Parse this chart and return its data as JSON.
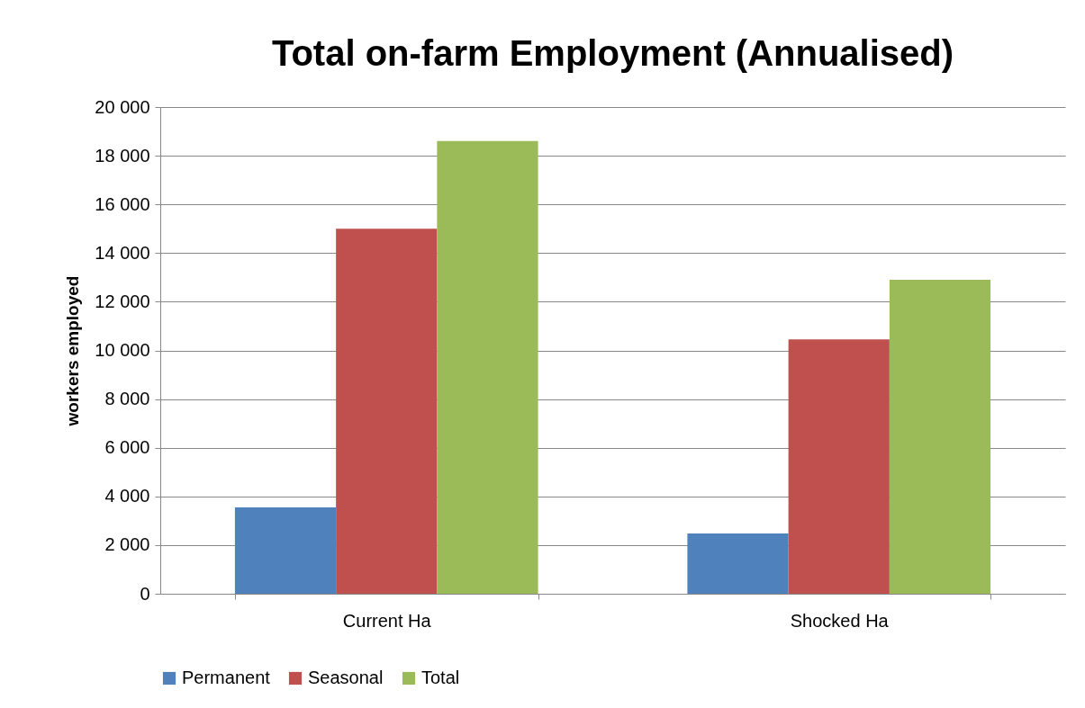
{
  "chart_data": {
    "type": "bar",
    "title": "Total on-farm Employment (Annualised)",
    "ylabel": "workers employed",
    "categories": [
      "Current Ha",
      "Shocked Ha"
    ],
    "series": [
      {
        "name": "Permanent",
        "color": "#4f81bd",
        "values": [
          3550,
          2480
        ]
      },
      {
        "name": "Seasonal",
        "color": "#c0504d",
        "values": [
          15000,
          10450
        ]
      },
      {
        "name": "Total",
        "color": "#9bbb59",
        "values": [
          18600,
          12900
        ]
      }
    ],
    "ylim": [
      0,
      20000
    ],
    "yticks": [
      {
        "value": 0,
        "label": "0"
      },
      {
        "value": 2000,
        "label": "2 000"
      },
      {
        "value": 4000,
        "label": "4 000"
      },
      {
        "value": 6000,
        "label": "6 000"
      },
      {
        "value": 8000,
        "label": "8 000"
      },
      {
        "value": 10000,
        "label": "10 000"
      },
      {
        "value": 12000,
        "label": "12 000"
      },
      {
        "value": 14000,
        "label": "14 000"
      },
      {
        "value": 16000,
        "label": "16 000"
      },
      {
        "value": 18000,
        "label": "18 000"
      },
      {
        "value": 20000,
        "label": "20 000"
      }
    ],
    "grid": "y",
    "legend": "bottom"
  }
}
